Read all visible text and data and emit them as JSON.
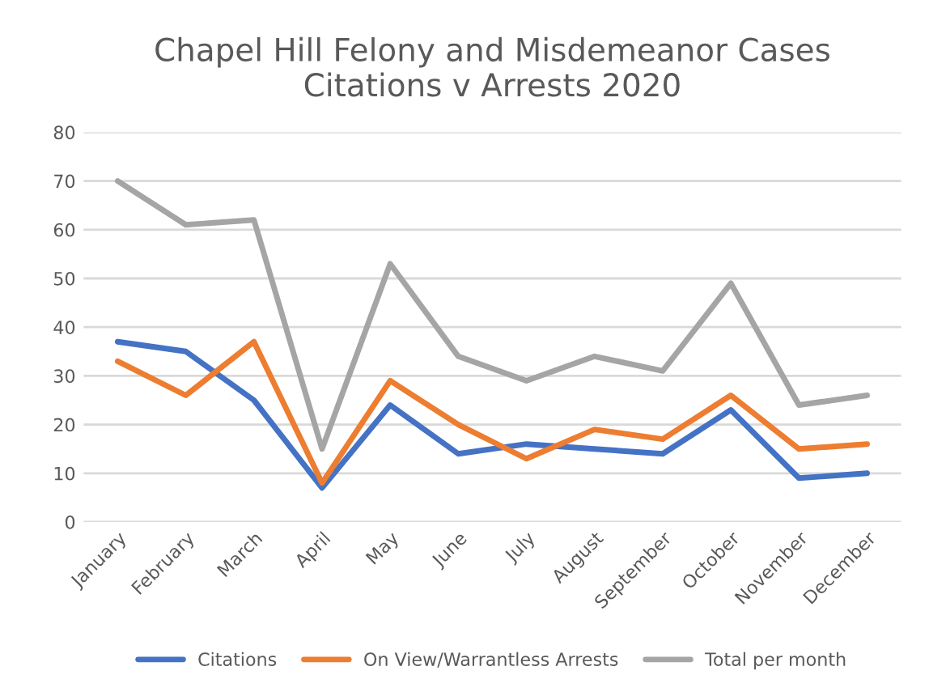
{
  "chart_data": {
    "type": "line",
    "title": "Chapel Hill Felony and Misdemeanor Cases\nCitations v Arrests 2020",
    "categories": [
      "January",
      "February",
      "March",
      "April",
      "May",
      "June",
      "July",
      "August",
      "September",
      "October",
      "November",
      "December"
    ],
    "series": [
      {
        "name": "Citations",
        "color": "#4472c4",
        "values": [
          37,
          35,
          25,
          7,
          24,
          14,
          16,
          15,
          14,
          23,
          9,
          10
        ]
      },
      {
        "name": "On View/Warrantless Arrests",
        "color": "#ed7d31",
        "values": [
          33,
          26,
          37,
          8,
          29,
          20,
          13,
          19,
          17,
          26,
          15,
          16
        ]
      },
      {
        "name": "Total per month",
        "color": "#a5a5a5",
        "values": [
          70,
          61,
          62,
          15,
          53,
          34,
          29,
          34,
          31,
          49,
          24,
          26
        ]
      }
    ],
    "ylim": [
      0,
      80
    ],
    "yticks": [
      0,
      10,
      20,
      30,
      40,
      50,
      60,
      70,
      80
    ],
    "grid": "y",
    "legend": "bottom",
    "marker": "none",
    "line_style": "solid"
  }
}
